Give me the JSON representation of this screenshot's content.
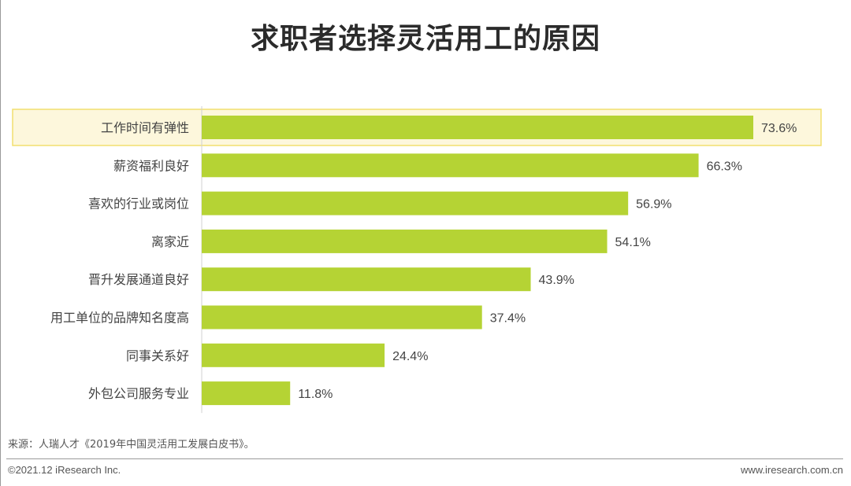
{
  "page": {
    "title": "求职者选择灵活用工的原因",
    "source": "来源：人瑞人才《2019年中国灵活用工发展白皮书》。",
    "copyright": "©2021.12 iResearch Inc.",
    "website": "www.iresearch.com.cn"
  },
  "colors": {
    "bar": "#b5d334",
    "highlight_fill": "#fdf7dc",
    "highlight_border": "#f2df6e",
    "text": "#444444"
  },
  "chart_data": {
    "type": "bar",
    "orientation": "horizontal",
    "title": "求职者选择灵活用工的原因",
    "unit": "%",
    "categories": [
      "工作时间有弹性",
      "薪资福利良好",
      "喜欢的行业或岗位",
      "离家近",
      "晋升发展通道良好",
      "用工单位的品牌知名度高",
      "同事关系好",
      "外包公司服务专业"
    ],
    "values": [
      73.6,
      66.3,
      56.9,
      54.1,
      43.9,
      37.4,
      24.4,
      11.8
    ],
    "value_labels": [
      "73.6%",
      "66.3%",
      "56.9%",
      "54.1%",
      "43.9%",
      "37.4%",
      "24.4%",
      "11.8%"
    ],
    "highlighted_category": "工作时间有弹性",
    "xlim": [
      0,
      80
    ],
    "grid": false,
    "legend": "none"
  }
}
